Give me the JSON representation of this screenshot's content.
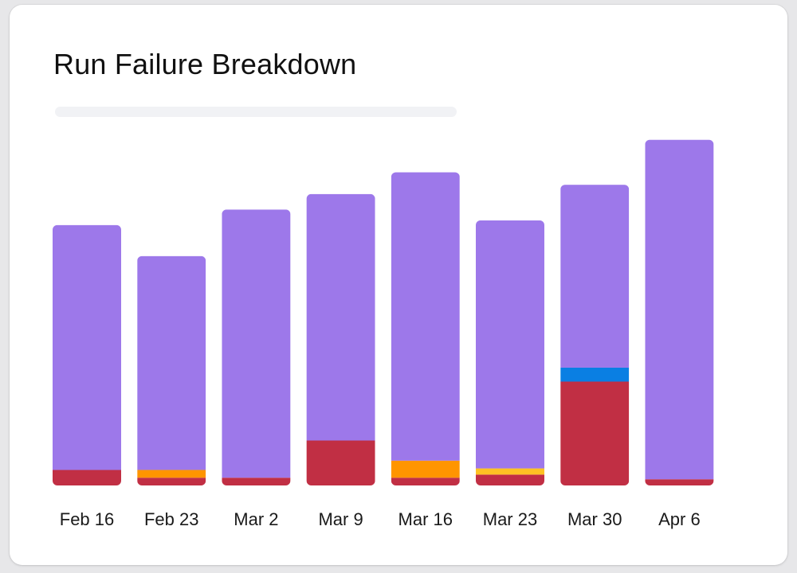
{
  "title": "Run Failure Breakdown",
  "colors": {
    "success": "#9d78ea",
    "failed": "#c12f44",
    "cancelled": "#ff9500",
    "skipped": "#ffc223",
    "timed_out": "#0a7fe3"
  },
  "chart_data": {
    "type": "bar",
    "stacked": true,
    "title": "Run Failure Breakdown",
    "categories": [
      "Feb 16",
      "Feb 23",
      "Mar 2",
      "Mar 9",
      "Mar 16",
      "Mar 23",
      "Mar 30",
      "Apr 6"
    ],
    "series": [
      {
        "key": "failed",
        "color": "#c12f44",
        "values": [
          20,
          10,
          10,
          58,
          10,
          14,
          134,
          8
        ]
      },
      {
        "key": "cancelled",
        "color": "#ff9500",
        "values": [
          0,
          10,
          0,
          0,
          22,
          0,
          0,
          0
        ]
      },
      {
        "key": "skipped",
        "color": "#ffc223",
        "values": [
          0,
          0,
          0,
          0,
          0,
          8,
          0,
          0
        ]
      },
      {
        "key": "timed_out",
        "color": "#0a7fe3",
        "values": [
          0,
          0,
          0,
          0,
          0,
          0,
          18,
          0
        ]
      },
      {
        "key": "success",
        "color": "#9d78ea",
        "values": [
          316,
          276,
          346,
          318,
          372,
          320,
          236,
          438
        ]
      }
    ],
    "ylim": [
      0,
      460
    ],
    "grid": false,
    "legend": "none"
  }
}
